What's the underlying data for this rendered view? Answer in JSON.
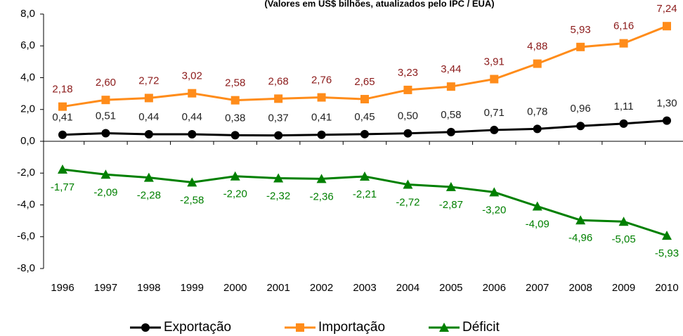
{
  "chart_data": {
    "type": "line",
    "subtitle": "(Valores em US$ bilhões, atualizados pelo IPC / EUA)",
    "categories": [
      "1996",
      "1997",
      "1998",
      "1999",
      "2000",
      "2001",
      "2002",
      "2003",
      "2004",
      "2005",
      "2006",
      "2007",
      "2008",
      "2009",
      "2010"
    ],
    "series": [
      {
        "name": "Exportação",
        "color": "#000000",
        "label_color": "#222222",
        "marker": "circle",
        "label_position": "above",
        "values": [
          0.41,
          0.51,
          0.44,
          0.44,
          0.38,
          0.37,
          0.41,
          0.45,
          0.5,
          0.58,
          0.71,
          0.78,
          0.96,
          1.11,
          1.3
        ],
        "value_labels": [
          "0,41",
          "0,51",
          "0,44",
          "0,44",
          "0,38",
          "0,37",
          "0,41",
          "0,45",
          "0,50",
          "0,58",
          "0,71",
          "0,78",
          "0,96",
          "1,11",
          "1,30"
        ]
      },
      {
        "name": "Importação",
        "color": "#ff8c1a",
        "label_color": "#8b1a1a",
        "marker": "square",
        "label_position": "above",
        "values": [
          2.18,
          2.6,
          2.72,
          3.02,
          2.58,
          2.68,
          2.76,
          2.65,
          3.23,
          3.44,
          3.91,
          4.88,
          5.93,
          6.16,
          7.24
        ],
        "value_labels": [
          "2,18",
          "2,60",
          "2,72",
          "3,02",
          "2,58",
          "2,68",
          "2,76",
          "2,65",
          "3,23",
          "3,44",
          "3,91",
          "4,88",
          "5,93",
          "6,16",
          "7,24"
        ]
      },
      {
        "name": "Déficit",
        "color": "#008000",
        "label_color": "#008000",
        "marker": "triangle",
        "label_position": "below",
        "values": [
          -1.77,
          -2.09,
          -2.28,
          -2.58,
          -2.2,
          -2.32,
          -2.36,
          -2.21,
          -2.72,
          -2.87,
          -3.2,
          -4.09,
          -4.96,
          -5.05,
          -5.93
        ],
        "value_labels": [
          "-1,77",
          "-2,09",
          "-2,28",
          "-2,58",
          "-2,20",
          "-2,32",
          "-2,36",
          "-2,21",
          "-2,72",
          "-2,87",
          "-3,20",
          "-4,09",
          "-4,96",
          "-5,05",
          "-5,93"
        ]
      }
    ],
    "ylim": [
      -8,
      8
    ],
    "yticks": [
      {
        "value": -8,
        "label": "-8,0"
      },
      {
        "value": -6,
        "label": "-6,0"
      },
      {
        "value": -4,
        "label": "-4,0"
      },
      {
        "value": -2,
        "label": "-2,0"
      },
      {
        "value": 0,
        "label": "0,0"
      },
      {
        "value": 2,
        "label": "2,0"
      },
      {
        "value": 4,
        "label": "4,0"
      },
      {
        "value": 6,
        "label": "6,0"
      },
      {
        "value": 8,
        "label": "8,0"
      }
    ],
    "grid": false,
    "legend": "bottom"
  }
}
